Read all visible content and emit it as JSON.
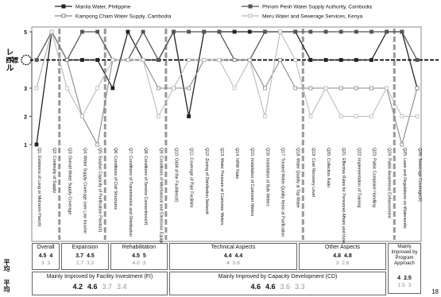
{
  "chart_data": {
    "type": "line",
    "y_axis_label": "レベル",
    "ylim": [
      1,
      5
    ],
    "y_ticks": [
      "1",
      "2",
      "3",
      "4",
      "5"
    ],
    "target_line_label": "目標",
    "categories": [
      "Q1: Existence of Long or Mid-term Plan(#)",
      "Q2: Continuity of Supply",
      "Q3: Overall Water Supply Coverage",
      "Q4: Water Supply Coverage over Low Income",
      "Q5: Surplus Capacity of Purification Plants(#)",
      "Q6: Conditions of Civil Structures",
      "Q7: Conditions of Transmission and Distribution",
      "Q8: Conditions of Service Connections(#)",
      "Q9: Conditions of Mechanical and Electronic Equipment",
      "Q10: O&M of the Facilities(#)",
      "Q11: Coverage of Pipe Facilities",
      "Q12: Zoning of Distribution Network",
      "Q13: Water Pressure at Customer Meters",
      "Q14: NRW Ratio",
      "Q15: Installation of Customer Meters",
      "Q16: Installation of Bulk Meters",
      "Q17: Treated Water Quality Items at Purification",
      "Q18: Water Quality at Tap Water",
      "Q19: Cost Recovery Level",
      "Q20: Collection Ratio",
      "Q21: Effective Rules for Personnel Affairs and Incentive Control",
      "Q22: Implementation of Training",
      "Q23: Public Complaint Handling",
      "Q24: Public Awareness Enhancement",
      "Q25: Laws and Regulations on Waterworks",
      "Q26: Sewerage Coverage(#)"
    ],
    "series": [
      {
        "name": "Manila Water, Philippine",
        "color": "#222222",
        "marker": "square-filled",
        "values": [
          1,
          5,
          4,
          4,
          4,
          3,
          5,
          4,
          4,
          5,
          2,
          5,
          5,
          5,
          5,
          5,
          5,
          5,
          4,
          4,
          4,
          4,
          4,
          5,
          5,
          3
        ]
      },
      {
        "name": "Phnom Penh Water Supply Authority, Cambodia",
        "color": "#555555",
        "marker": "square-filled",
        "values": [
          4,
          5,
          4,
          5,
          5,
          4,
          4,
          5,
          4,
          5,
          5,
          5,
          5,
          4,
          4,
          5,
          5,
          5,
          5,
          5,
          5,
          5,
          5,
          5,
          5,
          4
        ]
      },
      {
        "name": "Kampong Cham Water Supply, Cambodia",
        "color": "#888888",
        "marker": "square-open",
        "values": [
          3,
          5,
          4,
          2,
          1,
          4,
          4,
          4,
          3,
          3,
          3,
          4,
          4,
          4,
          4,
          3,
          4,
          3,
          3,
          3,
          3,
          3,
          3,
          3,
          1,
          3
        ]
      },
      {
        "name": "Meru Water and Sewerage Services, Kenya",
        "color": "#bbbbbb",
        "marker": "square-open",
        "values": [
          3,
          5,
          3,
          2,
          3,
          4,
          4,
          4,
          2,
          3,
          4,
          4,
          4,
          3,
          4,
          2,
          5,
          4,
          2,
          3,
          2,
          2,
          2,
          3,
          2,
          2
        ]
      }
    ],
    "groups": [
      {
        "label": "Overall",
        "values_row1": [
          "4.5",
          "4"
        ],
        "values_row2": [
          "3",
          "3"
        ]
      },
      {
        "label": "Expansion",
        "values_row1": [
          "3.7",
          "4.5"
        ],
        "values_row2": [
          "2.7",
          "3.3"
        ]
      },
      {
        "label": "Rehabilitation",
        "values_row1": [
          "4.5",
          "5"
        ],
        "values_row2": [
          "4.0",
          "3"
        ]
      },
      {
        "label": "Technical Aspects",
        "values_row1": [
          "4.4",
          "4.4"
        ],
        "values_row2": [
          "4",
          "3.6"
        ]
      },
      {
        "label": "Other Aspects",
        "values_row1": [
          "4.8",
          "4.8"
        ],
        "values_row2": [
          "3",
          "2.6"
        ]
      },
      {
        "label": "Mainly Improved by Program Approach",
        "values_row1": [
          "4",
          "2.5"
        ],
        "values_row2": [
          "1.5",
          "3"
        ]
      }
    ],
    "summaries": [
      {
        "label": "Mainly Improved by Facility Investment (FI)",
        "values_row1": [
          "4.2",
          "4.6"
        ],
        "values_row2": [
          "3.7",
          "3.4"
        ]
      },
      {
        "label": "Mainly Improved by Capacity Development (CD)",
        "values_row1": [
          "4.6",
          "4.6"
        ],
        "values_row2": [
          "3.6",
          "3.3"
        ]
      }
    ],
    "side_labels": [
      "平均",
      "平均"
    ],
    "page_number": "18"
  }
}
